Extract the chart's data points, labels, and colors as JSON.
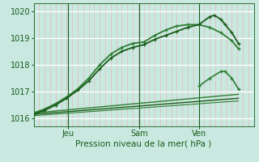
{
  "bg_color": "#c8e8e0",
  "plot_bg_color": "#c8e8e0",
  "grid_h_color": "#ffffff",
  "grid_v_color": "#e8b8b8",
  "line_color_dark": "#1a5c1a",
  "tick_label_color": "#1a5c1a",
  "xlabel": "Pression niveau de la mer( hPa )",
  "xtick_labels": [
    "Jeu",
    "Sam",
    "Ven"
  ],
  "ylim": [
    1015.7,
    1020.3
  ],
  "yticks": [
    1016,
    1017,
    1018,
    1019,
    1020
  ],
  "series": [
    {
      "x": [
        0.0,
        0.05,
        0.1,
        0.15,
        0.2,
        0.25,
        0.3,
        0.35,
        0.4,
        0.45,
        0.5,
        0.55,
        0.6,
        0.65,
        0.7,
        0.75,
        0.8,
        0.85,
        0.9,
        0.93
      ],
      "y": [
        1016.2,
        1016.35,
        1016.55,
        1016.8,
        1017.1,
        1017.5,
        1018.0,
        1018.4,
        1018.65,
        1018.8,
        1018.85,
        1019.1,
        1019.3,
        1019.45,
        1019.5,
        1019.5,
        1019.4,
        1019.2,
        1018.9,
        1018.6
      ],
      "marker": "+",
      "color": "#2e7d32",
      "lw": 1.3
    },
    {
      "x": [
        0.0,
        0.05,
        0.1,
        0.15,
        0.2,
        0.25,
        0.3,
        0.35,
        0.4,
        0.45,
        0.5,
        0.55,
        0.6,
        0.65,
        0.7,
        0.75,
        0.8,
        0.82,
        0.85,
        0.87,
        0.9,
        0.93
      ],
      "y": [
        1016.15,
        1016.3,
        1016.5,
        1016.75,
        1017.05,
        1017.4,
        1017.85,
        1018.25,
        1018.5,
        1018.65,
        1018.75,
        1018.95,
        1019.1,
        1019.25,
        1019.4,
        1019.5,
        1019.8,
        1019.85,
        1019.7,
        1019.5,
        1019.2,
        1018.8
      ],
      "marker": "+",
      "color": "#1a5c1a",
      "lw": 1.3
    },
    {
      "x": [
        0.0,
        0.93
      ],
      "y": [
        1016.2,
        1016.9
      ],
      "marker": null,
      "color": "#2e7d32",
      "lw": 1.0
    },
    {
      "x": [
        0.0,
        0.93
      ],
      "y": [
        1016.15,
        1016.75
      ],
      "marker": null,
      "color": "#1a5c1a",
      "lw": 1.0
    },
    {
      "x": [
        0.0,
        0.93
      ],
      "y": [
        1016.1,
        1016.65
      ],
      "marker": null,
      "color": "#2e7d32",
      "lw": 0.8
    },
    {
      "x": [
        0.75,
        0.8,
        0.85,
        0.87,
        0.9,
        0.93
      ],
      "y": [
        1017.2,
        1017.5,
        1017.75,
        1017.75,
        1017.5,
        1017.1
      ],
      "marker": "+",
      "color": "#2e7d32",
      "lw": 1.2
    }
  ],
  "vlines_x": [
    0.155,
    0.48,
    0.75
  ],
  "vline_color": "#1a5c1a",
  "num_v_minor": 40
}
